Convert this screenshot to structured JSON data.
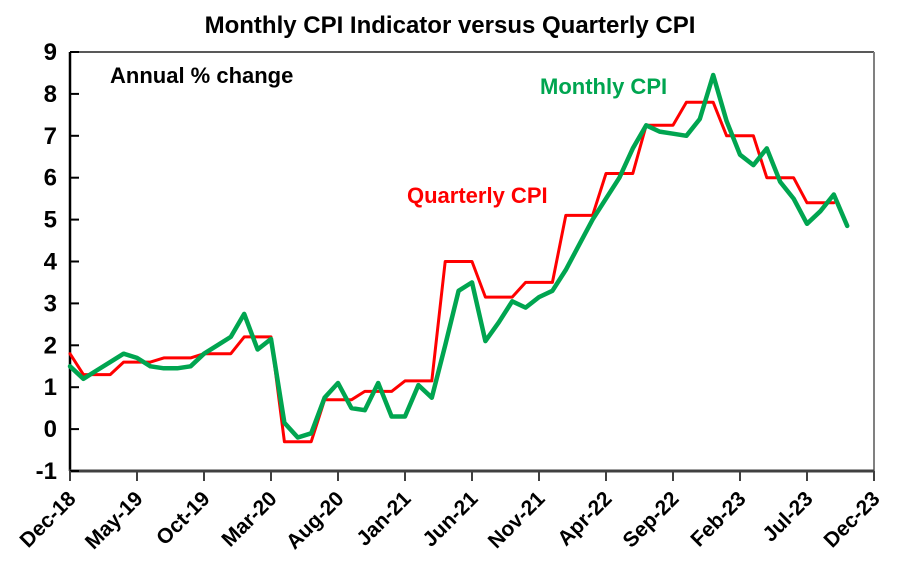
{
  "title": "Monthly CPI Indicator versus Quarterly CPI",
  "annotations": {
    "units_note": "Annual % change",
    "monthly_label": "Monthly CPI",
    "quarterly_label": "Quarterly CPI"
  },
  "colors": {
    "monthly_line": "#00A550",
    "quarterly_line": "#FF0000",
    "axis": "#000000",
    "frame": "#808080",
    "background": "#FFFFFF"
  },
  "chart_data": {
    "type": "line",
    "title": "Monthly CPI Indicator versus Quarterly CPI",
    "subtitle_note": "Annual % change",
    "xlabel": "",
    "ylabel": "",
    "ylim": [
      -1,
      9
    ],
    "y_ticks": [
      9,
      8,
      7,
      6,
      5,
      4,
      3,
      2,
      1,
      0,
      -1
    ],
    "grid": false,
    "legend_position": "inline-labels",
    "x_start_month": "Dec-18",
    "x_end_month": "Dec-23",
    "months_per_tick": 5,
    "x_tick_labels": [
      "Dec-18",
      "May-19",
      "Oct-19",
      "Mar-20",
      "Aug-20",
      "Jan-21",
      "Jun-21",
      "Nov-21",
      "Apr-22",
      "Sep-22",
      "Feb-23",
      "Jul-23",
      "Dec-23"
    ],
    "x_tick_positions": [
      0,
      5,
      10,
      15,
      20,
      25,
      30,
      35,
      40,
      45,
      50,
      55,
      60
    ],
    "series": [
      {
        "name": "Quarterly CPI",
        "color": "#FF0000",
        "start_month_index": 0,
        "note": "quarterly annual % change, each quarter value plotted for its 3 calendar months; ends Sep-23",
        "values": [
          1.8,
          1.3,
          1.3,
          1.3,
          1.6,
          1.6,
          1.6,
          1.7,
          1.7,
          1.7,
          1.8,
          1.8,
          1.8,
          2.2,
          2.2,
          2.2,
          -0.3,
          -0.3,
          -0.3,
          0.7,
          0.7,
          0.7,
          0.9,
          0.9,
          0.9,
          1.15,
          1.15,
          1.15,
          4.0,
          4.0,
          4.0,
          3.15,
          3.15,
          3.15,
          3.5,
          3.5,
          3.5,
          5.1,
          5.1,
          5.1,
          6.1,
          6.1,
          6.1,
          7.25,
          7.25,
          7.25,
          7.8,
          7.8,
          7.8,
          7.0,
          7.0,
          7.0,
          6.0,
          6.0,
          6.0,
          5.4,
          5.4,
          5.4
        ]
      },
      {
        "name": "Monthly CPI",
        "color": "#00A550",
        "start_month_index": 0,
        "note": "monthly CPI indicator annual % change, Dec-18 to Oct-23",
        "values": [
          1.5,
          1.2,
          1.4,
          1.6,
          1.8,
          1.7,
          1.5,
          1.45,
          1.45,
          1.5,
          1.8,
          2.0,
          2.2,
          2.75,
          1.9,
          2.15,
          0.15,
          -0.2,
          -0.1,
          0.75,
          1.1,
          0.5,
          0.45,
          1.1,
          0.3,
          0.3,
          1.05,
          0.75,
          2.0,
          3.3,
          3.5,
          2.1,
          2.55,
          3.05,
          2.9,
          3.15,
          3.3,
          3.8,
          4.4,
          5.0,
          5.5,
          6.0,
          6.7,
          7.25,
          7.1,
          7.05,
          7.0,
          7.4,
          8.45,
          7.35,
          6.55,
          6.3,
          6.7,
          5.9,
          5.5,
          4.9,
          5.2,
          5.6,
          4.85
        ]
      }
    ],
    "quarterly_data_by_quarter": {
      "labels": [
        "Dec-18",
        "Mar-19",
        "Jun-19",
        "Sep-19",
        "Dec-19",
        "Mar-20",
        "Jun-20",
        "Sep-20",
        "Dec-20",
        "Mar-21",
        "Jun-21",
        "Sep-21",
        "Dec-21",
        "Mar-22",
        "Jun-22",
        "Sep-22",
        "Dec-22",
        "Mar-23",
        "Jun-23",
        "Sep-23"
      ],
      "values": [
        1.8,
        1.3,
        1.6,
        1.7,
        1.8,
        2.2,
        -0.3,
        0.7,
        0.9,
        1.15,
        4.0,
        3.15,
        3.5,
        5.1,
        6.1,
        7.25,
        7.8,
        7.0,
        6.0,
        5.4
      ]
    }
  }
}
